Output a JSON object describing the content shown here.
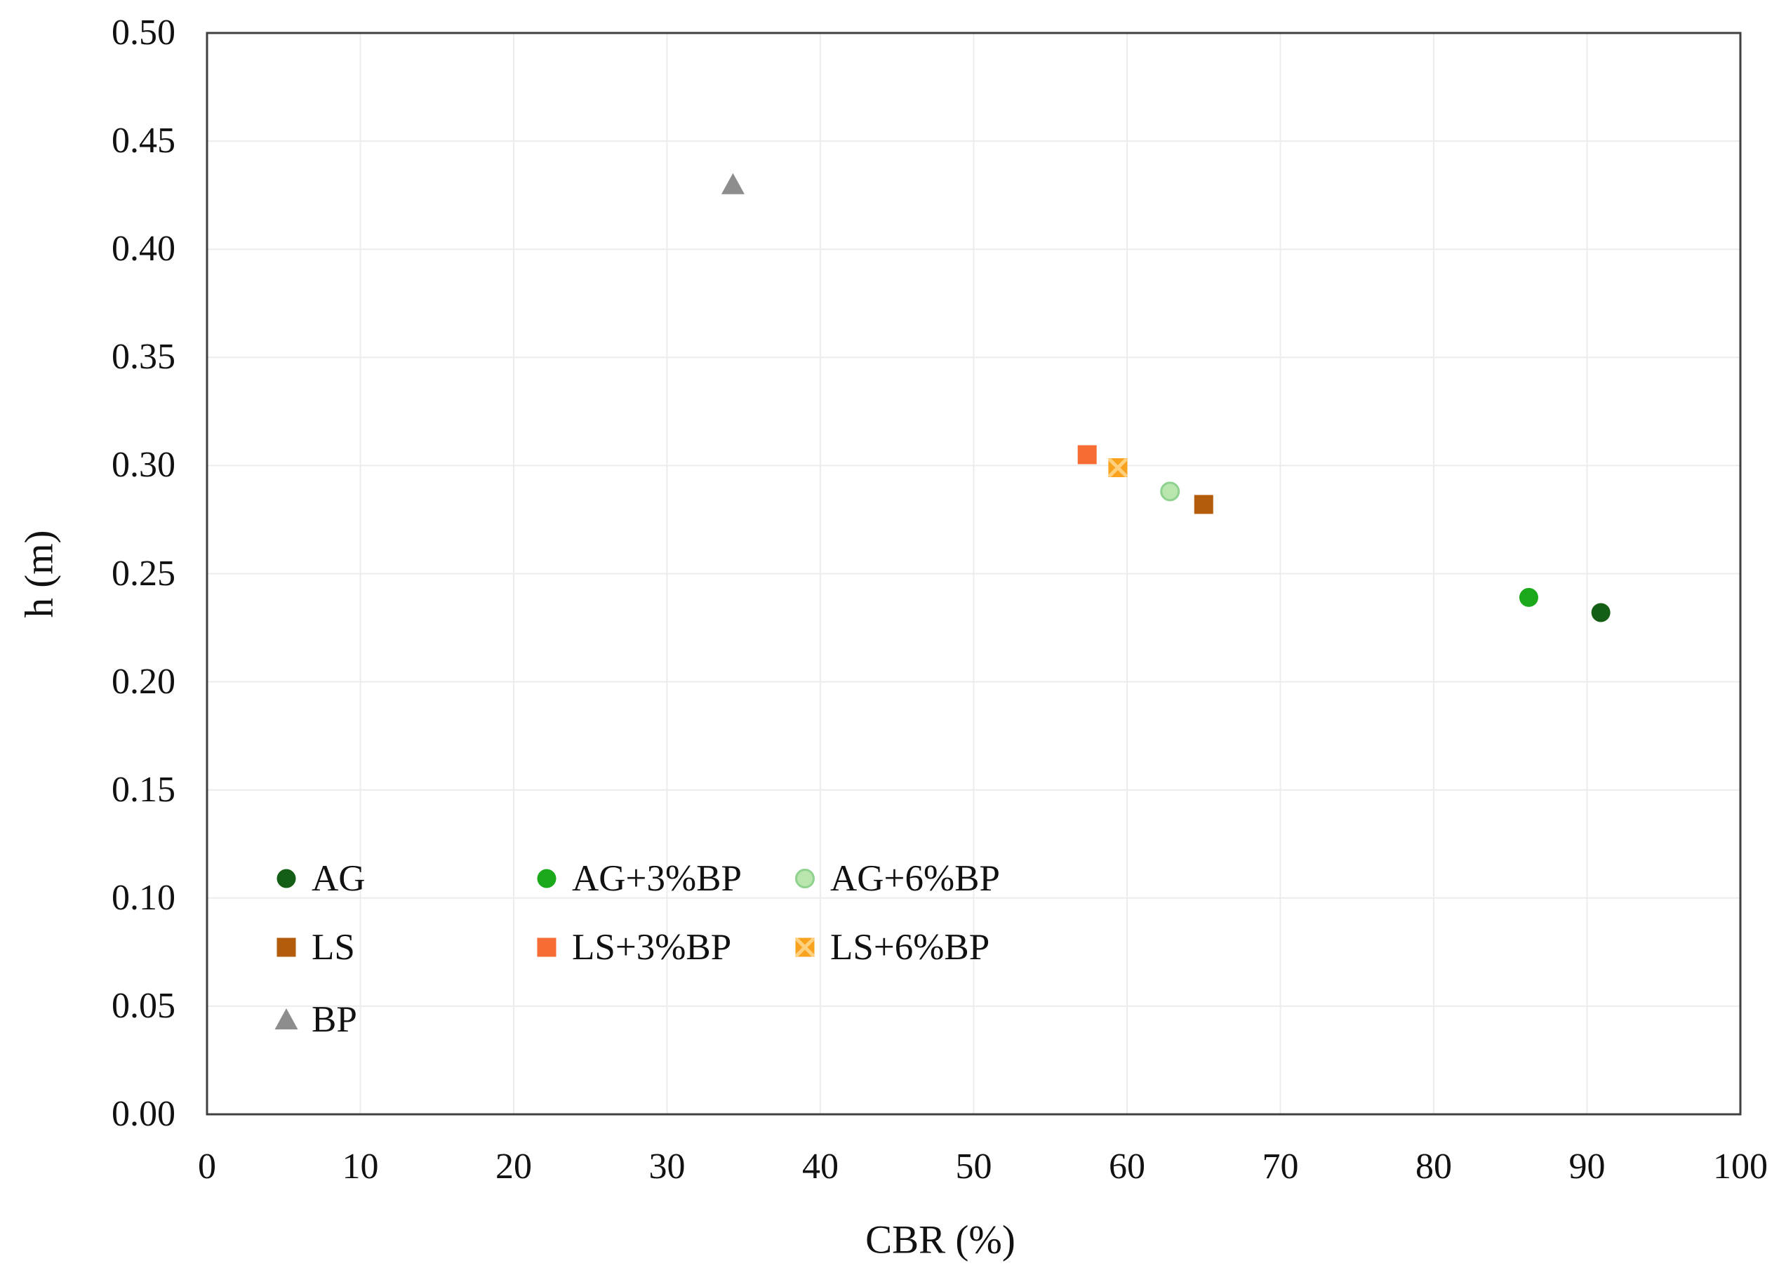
{
  "chart_data": {
    "type": "scatter",
    "title": "",
    "xlabel": "CBR (%)",
    "ylabel": "h (m)",
    "xlim": [
      0,
      100
    ],
    "ylim": [
      0.0,
      0.5
    ],
    "x_ticks": [
      0,
      10,
      20,
      30,
      40,
      50,
      60,
      70,
      80,
      90,
      100
    ],
    "y_ticks": [
      "0.00",
      "0.05",
      "0.10",
      "0.15",
      "0.20",
      "0.25",
      "0.30",
      "0.35",
      "0.40",
      "0.45",
      "0.50"
    ],
    "grid": true,
    "legend_position": "inside-bottom-left",
    "style": {
      "background": "#ffffff",
      "grid_color": "#ececec",
      "border_color": "#3f3f3f",
      "text_color": "#111111"
    },
    "series": [
      {
        "name": "AG",
        "marker": "circle",
        "color": "#155e15",
        "points": [
          [
            90.9,
            0.232
          ]
        ]
      },
      {
        "name": "AG+3%BP",
        "marker": "circle",
        "color": "#1ba81b",
        "points": [
          [
            86.2,
            0.239
          ]
        ]
      },
      {
        "name": "AG+6%BP",
        "marker": "circle-outline",
        "color": "#b9e5af",
        "stroke": "#8fd18f",
        "points": [
          [
            62.8,
            0.288
          ]
        ]
      },
      {
        "name": "LS",
        "marker": "square",
        "color": "#b25c0c",
        "points": [
          [
            65.0,
            0.282
          ]
        ]
      },
      {
        "name": "LS+3%BP",
        "marker": "square",
        "color": "#f76c33",
        "points": [
          [
            57.4,
            0.305
          ]
        ]
      },
      {
        "name": "LS+6%BP",
        "marker": "square-x",
        "color": "#f9a21d",
        "stroke": "#ffd07d",
        "points": [
          [
            59.4,
            0.299
          ]
        ]
      },
      {
        "name": "BP",
        "marker": "triangle",
        "color": "#8d8d8d",
        "points": [
          [
            34.3,
            0.43
          ]
        ]
      }
    ],
    "legend_rows": [
      [
        0,
        1,
        2
      ],
      [
        3,
        4,
        5
      ],
      [
        6
      ]
    ]
  }
}
